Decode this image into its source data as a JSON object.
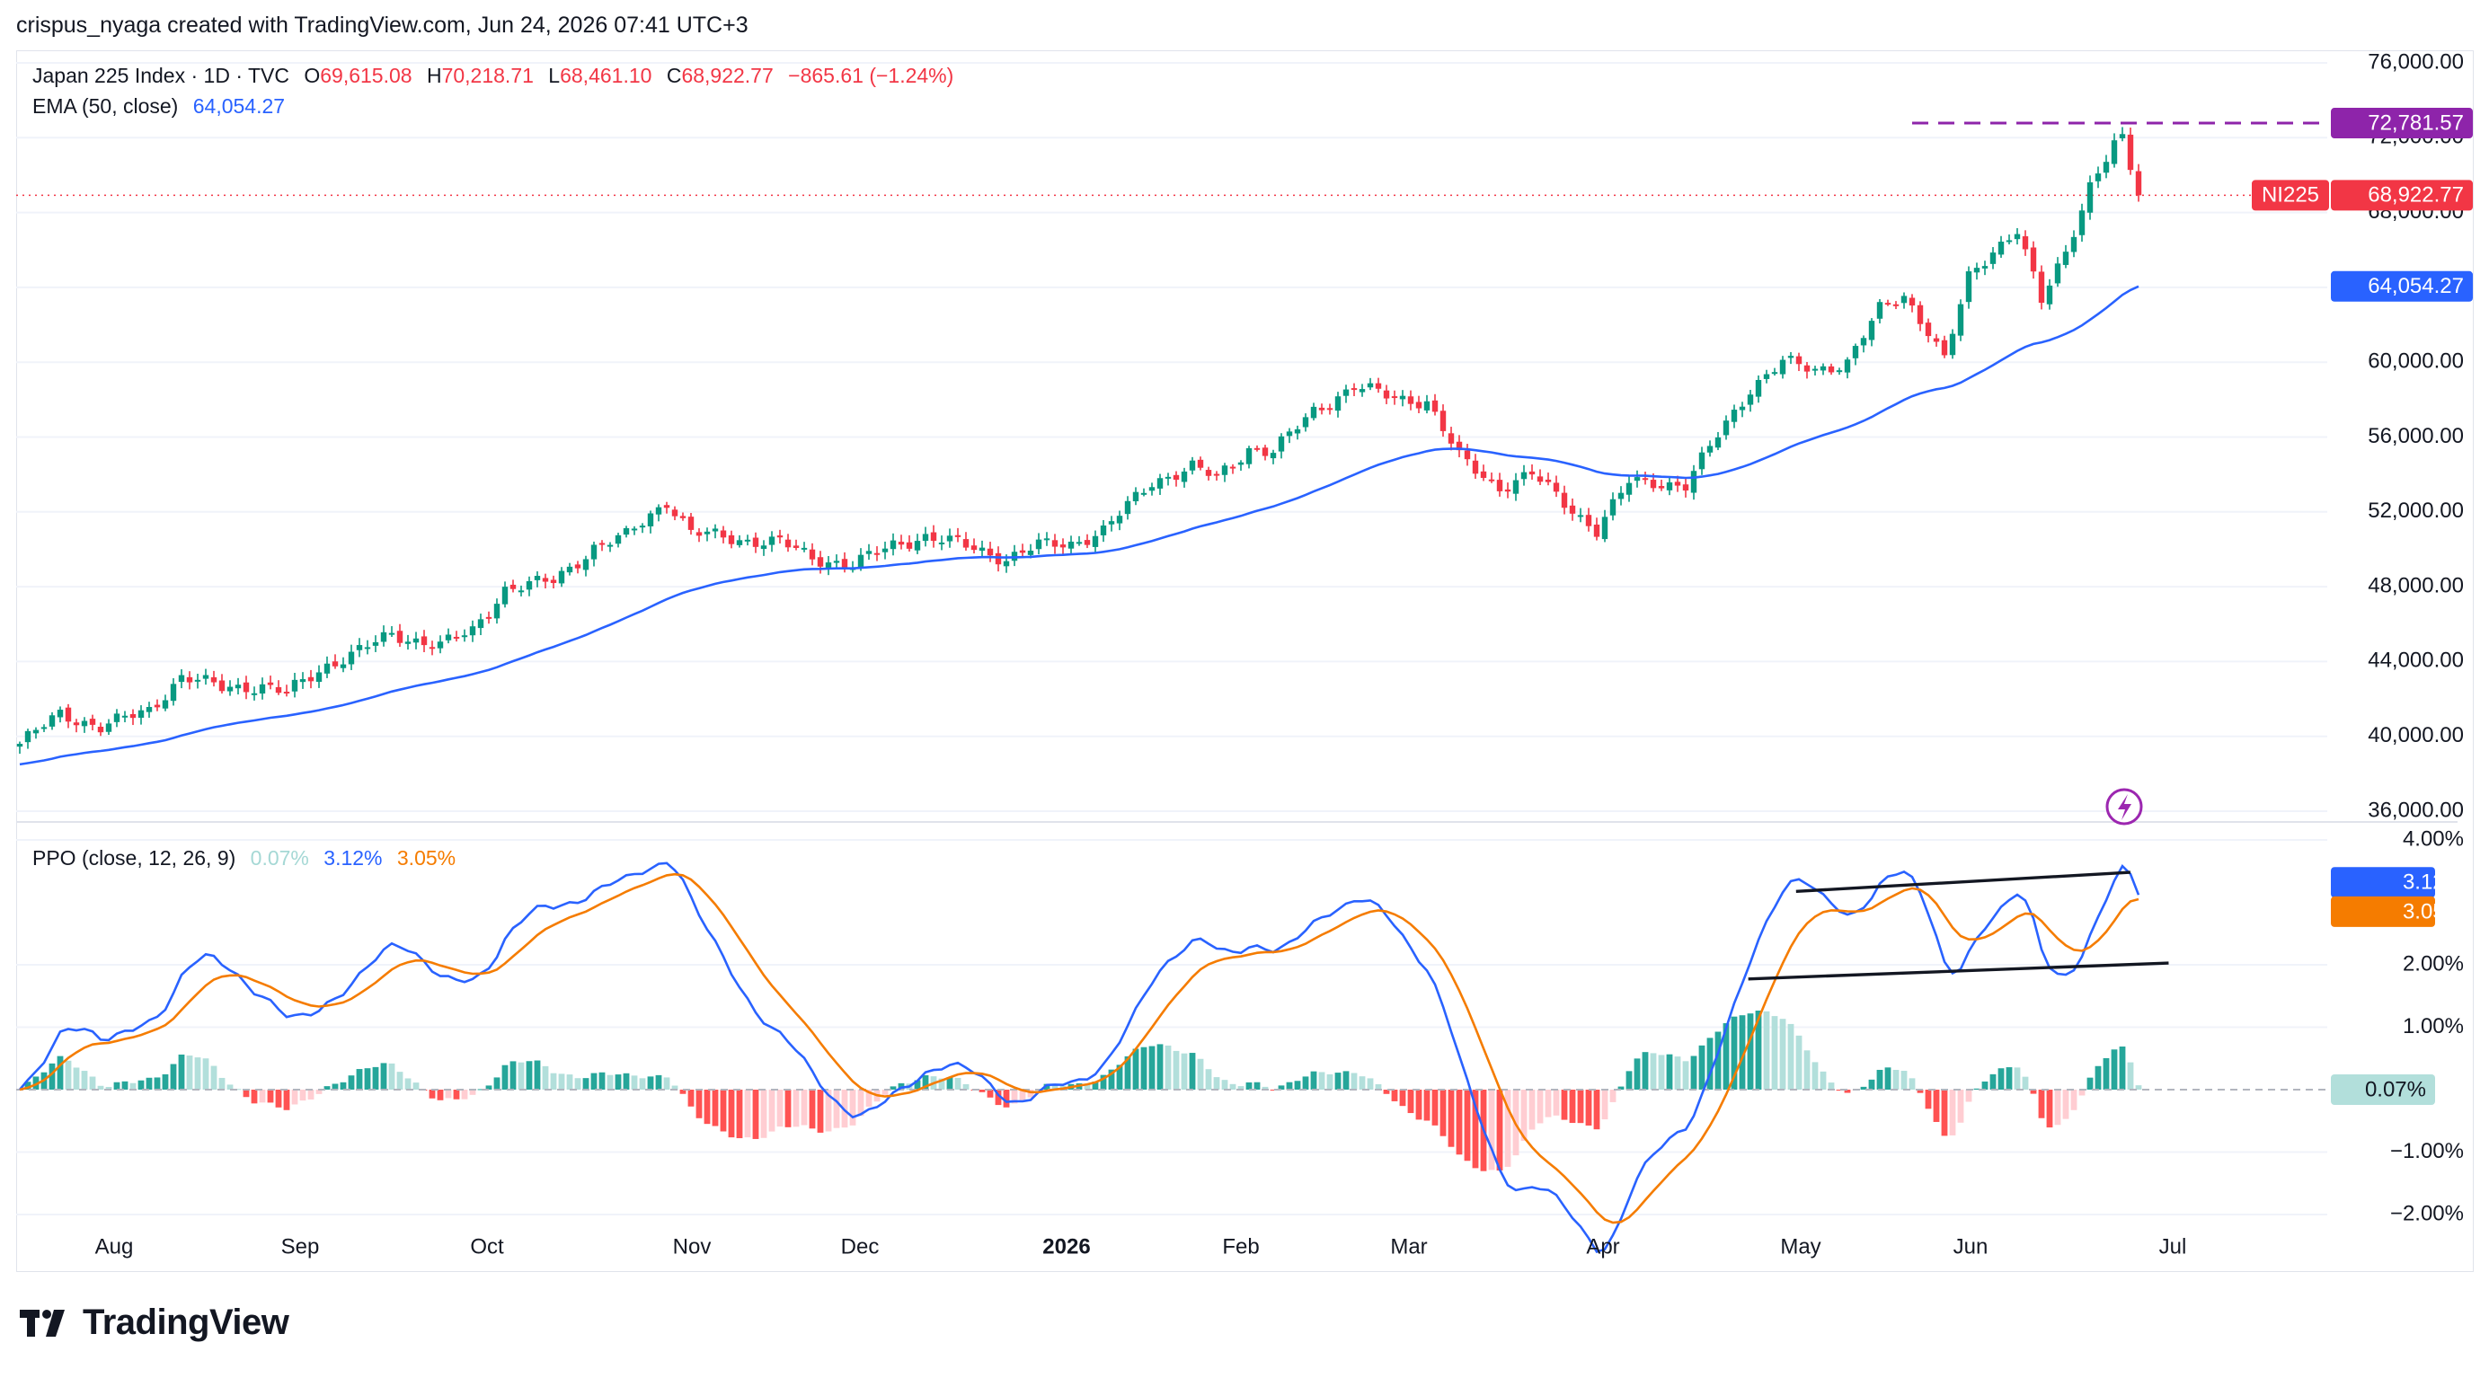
{
  "header": {
    "credit": "crispus_nyaga created with TradingView.com, Jun 24, 2026 07:41 UTC+3"
  },
  "legend": {
    "symbol": "Japan 225 Index · 1D · TVC",
    "open_label": "O",
    "open": "69,615.08",
    "high_label": "H",
    "high": "70,218.71",
    "low_label": "L",
    "low": "68,461.10",
    "close_label": "C",
    "close": "68,922.77",
    "change": "−865.61 (−1.24%)",
    "ema_label": "EMA (50, close)",
    "ema_value": "64,054.27",
    "ppo_label": "PPO (close, 12, 26, 9)",
    "ppo_hist": "0.07%",
    "ppo_line": "3.12%",
    "ppo_signal": "3.05%"
  },
  "colors": {
    "up": "#089981",
    "down": "#f23645",
    "ema": "#2962ff",
    "signal": "#f57c00",
    "hist_up_strong": "#26a69a",
    "hist_up_weak": "#b2dfdb",
    "hist_down_strong": "#ff5252",
    "hist_down_weak": "#ffcdd2",
    "resistance": "#8e24aa"
  },
  "price_labels": {
    "resistance": "72,781.57",
    "symbol_tag": "NI225",
    "last": "68,922.77",
    "ema": "64,054.27"
  },
  "ppo_labels": {
    "line": "3.12%",
    "signal": "3.05%",
    "hist": "0.07%"
  },
  "chart_data": [
    {
      "type": "candlestick",
      "title": "Japan 225 Index · 1D · TVC",
      "y_ticks": [
        "76,000.00",
        "72,000.00",
        "68,000.00",
        "64,000.00",
        "60,000.00",
        "56,000.00",
        "52,000.00",
        "48,000.00",
        "44,000.00",
        "40,000.00",
        "36,000.00"
      ],
      "ylim": [
        35500,
        77500
      ],
      "x_ticks": [
        "Aug",
        "Sep",
        "Oct",
        "Nov",
        "Dec",
        "2026",
        "Feb",
        "Mar",
        "Apr",
        "May",
        "Jun",
        "Jul"
      ],
      "series": [
        {
          "name": "Japan 225 Index",
          "dates": "2025-07-21 to 2026-06-24, trading days",
          "close_waypoints": [
            [
              0,
              39600
            ],
            [
              5,
              41200
            ],
            [
              10,
              40500
            ],
            [
              16,
              41400
            ],
            [
              20,
              43200
            ],
            [
              25,
              42600
            ],
            [
              30,
              42700
            ],
            [
              33,
              42300
            ],
            [
              38,
              43800
            ],
            [
              46,
              45400
            ],
            [
              52,
              44900
            ],
            [
              56,
              45600
            ],
            [
              60,
              47900
            ],
            [
              66,
              48300
            ],
            [
              71,
              50100
            ],
            [
              75,
              50700
            ],
            [
              80,
              52600
            ],
            [
              83,
              50900
            ],
            [
              89,
              50500
            ],
            [
              94,
              50400
            ],
            [
              98,
              49500
            ],
            [
              103,
              49200
            ],
            [
              108,
              50200
            ],
            [
              112,
              50700
            ],
            [
              116,
              50300
            ],
            [
              122,
              49500
            ],
            [
              126,
              50200
            ],
            [
              130,
              50300
            ],
            [
              134,
              51000
            ],
            [
              140,
              53600
            ],
            [
              145,
              54400
            ],
            [
              148,
              53800
            ],
            [
              152,
              55400
            ],
            [
              155,
              55200
            ],
            [
              160,
              57400
            ],
            [
              165,
              58700
            ],
            [
              170,
              58100
            ],
            [
              174,
              57900
            ],
            [
              178,
              54900
            ],
            [
              183,
              53300
            ],
            [
              187,
              54000
            ],
            [
              191,
              52500
            ],
            [
              195,
              51000
            ],
            [
              199,
              53600
            ],
            [
              202,
              53600
            ],
            [
              206,
              53400
            ],
            [
              210,
              56100
            ],
            [
              214,
              58600
            ],
            [
              218,
              60000
            ],
            [
              222,
              59600
            ],
            [
              226,
              60000
            ],
            [
              230,
              62800
            ],
            [
              233,
              63600
            ],
            [
              236,
              61700
            ],
            [
              238,
              60100
            ],
            [
              241,
              64500
            ],
            [
              244,
              66000
            ],
            [
              247,
              67100
            ],
            [
              250,
              63200
            ],
            [
              253,
              65900
            ],
            [
              256,
              69500
            ],
            [
              259,
              71600
            ],
            [
              260,
              71800
            ],
            [
              261,
              70300
            ],
            [
              262,
              68922.77
            ]
          ]
        },
        {
          "name": "EMA (50, close)",
          "last": 64054.27
        }
      ],
      "annotations": [
        {
          "text": "72,781.57",
          "kind": "horizontal dashed level",
          "y": 72781.57
        },
        {
          "text": "NI225 68,922.77",
          "kind": "last price",
          "y": 68922.77
        },
        {
          "text": "64,054.27",
          "kind": "EMA value",
          "y": 64054.27
        }
      ]
    },
    {
      "type": "line",
      "title": "PPO (close, 12, 26, 9)",
      "y_ticks": [
        "4.00%",
        "2.00%",
        "1.00%",
        "−1.00%",
        "−2.00%"
      ],
      "ylim": [
        -2.0,
        4.0
      ],
      "series": [
        {
          "name": "PPO",
          "last": 3.12
        },
        {
          "name": "Signal",
          "last": 3.05
        },
        {
          "name": "Histogram",
          "type": "bar",
          "last": 0.07
        }
      ],
      "trendlines": [
        {
          "from": [
            1128,
            560
          ],
          "to": [
            1338,
            548
          ],
          "note": "upper channel line (screen-space reading)"
        },
        {
          "from": [
            1098,
            615
          ],
          "to": [
            1362,
            605
          ],
          "note": "lower channel line (screen-space reading)"
        }
      ]
    }
  ]
}
